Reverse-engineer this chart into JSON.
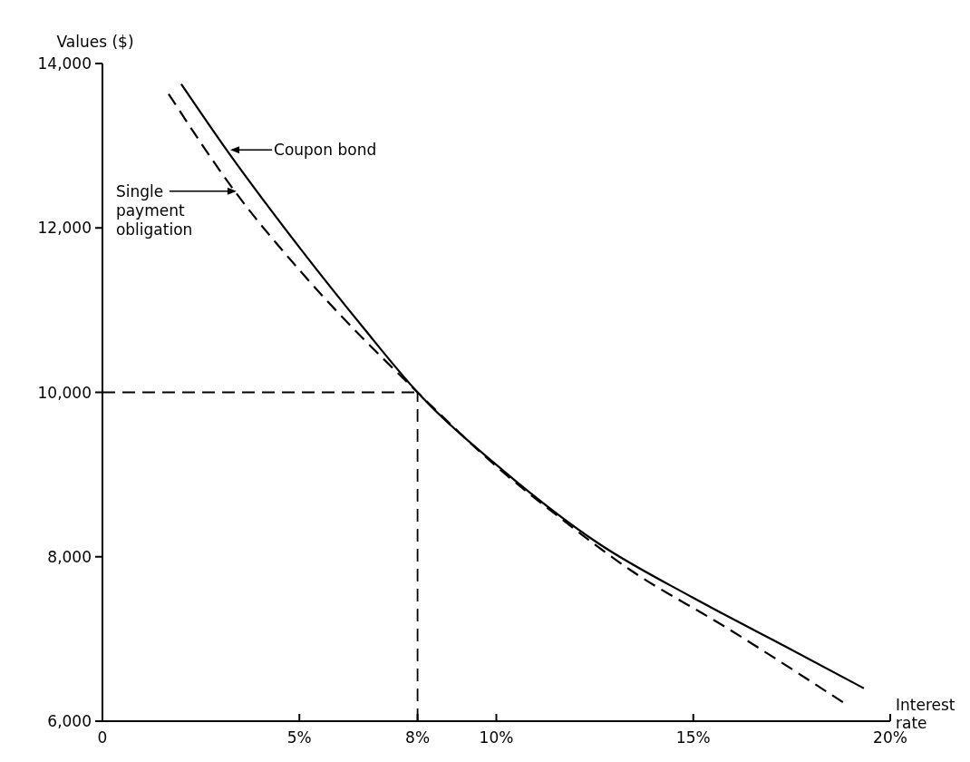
{
  "chart_data": {
    "type": "line",
    "xlabel": "Interest rate",
    "ylabel": "Values ($)",
    "xlim": [
      0,
      20
    ],
    "ylim": [
      6000,
      14000
    ],
    "xticks": [
      {
        "value": 0,
        "label": "0"
      },
      {
        "value": 5,
        "label": "5%"
      },
      {
        "value": 8,
        "label": "8%"
      },
      {
        "value": 10,
        "label": "10%"
      },
      {
        "value": 15,
        "label": "15%"
      },
      {
        "value": 20,
        "label": "20%"
      }
    ],
    "yticks": [
      {
        "value": 6000,
        "label": "6,000"
      },
      {
        "value": 8000,
        "label": "8,000"
      },
      {
        "value": 10000,
        "label": "10,000"
      },
      {
        "value": 12000,
        "label": "12,000"
      },
      {
        "value": 14000,
        "label": "14,000"
      }
    ],
    "grid": false,
    "marker": "none",
    "series": [
      {
        "color": "#000000",
        "line_style": "solid",
        "x": [
          2.0,
          3.15,
          5.07,
          6.6,
          8,
          10.17,
          12.6,
          15.0,
          17.45,
          19.33
        ],
        "values": [
          13750,
          12950,
          11720,
          10800,
          10000,
          9050,
          8160,
          7500,
          6880,
          6400
        ]
      },
      {
        "color": "#000000",
        "line_style": "dashed",
        "x": [
          1.68,
          3.4,
          5.07,
          8,
          10.17,
          11.6,
          13.4,
          15.8,
          18.8
        ],
        "values": [
          13630,
          12420,
          11450,
          10000,
          9030,
          8480,
          7840,
          7150,
          6230
        ]
      }
    ],
    "ref_lines": [
      {
        "axis": "y",
        "value": 10000,
        "line_style": "dashed"
      },
      {
        "axis": "x",
        "value": 8,
        "line_style": "dashed"
      }
    ],
    "annotations": [
      {
        "text": "Coupon bond",
        "x": 3.2,
        "y": 12950
      },
      {
        "text": "Single payment obligation",
        "x": 3.45,
        "y": 12380
      }
    ]
  }
}
